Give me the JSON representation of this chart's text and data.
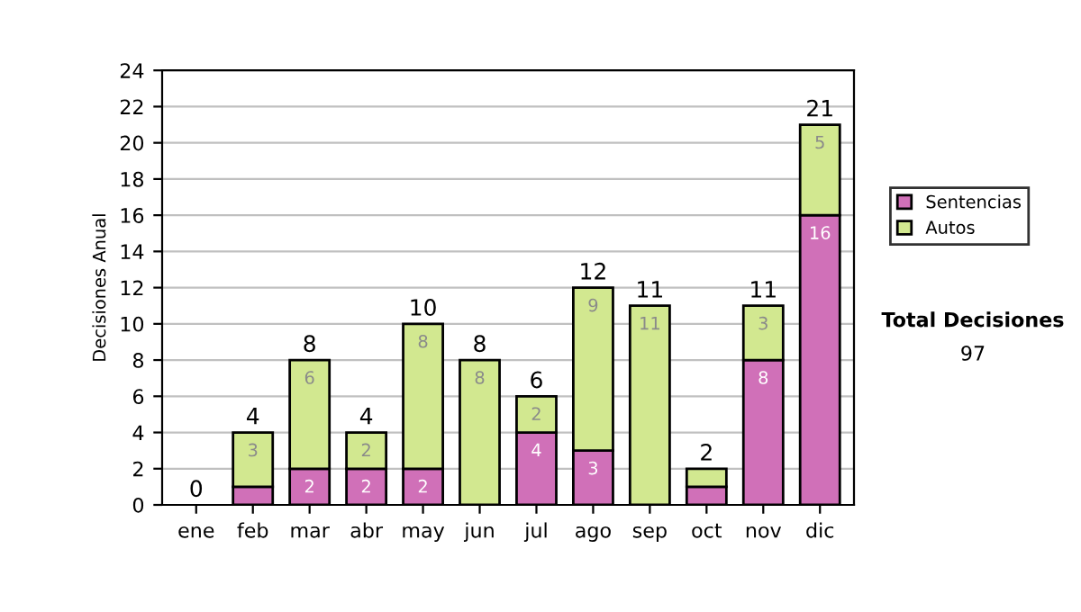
{
  "chart_data": {
    "type": "bar",
    "stacked": true,
    "ylabel": "Decisiones Anual",
    "categories": [
      "ene",
      "feb",
      "mar",
      "abr",
      "may",
      "jun",
      "jul",
      "ago",
      "sep",
      "oct",
      "nov",
      "dic"
    ],
    "series": [
      {
        "name": "Sentencias",
        "color": "#d070b8",
        "values": [
          0,
          1,
          2,
          2,
          2,
          0,
          4,
          3,
          0,
          1,
          8,
          16
        ],
        "value_labels": [
          null,
          null,
          "2",
          "2",
          "2",
          null,
          "4",
          "3",
          null,
          null,
          "8",
          "16"
        ]
      },
      {
        "name": "Autos",
        "color": "#d2e890",
        "values": [
          0,
          3,
          6,
          2,
          8,
          8,
          2,
          9,
          11,
          1,
          3,
          5
        ],
        "value_labels": [
          null,
          "3",
          "6",
          "2",
          "8",
          "8",
          "2",
          "9",
          "11",
          null,
          "3",
          "5"
        ]
      }
    ],
    "totals": [
      "0",
      "4",
      "8",
      "4",
      "10",
      "8",
      "6",
      "12",
      "11",
      "2",
      "11",
      "21"
    ],
    "ylim": [
      0,
      24
    ],
    "yticks": [
      0,
      2,
      4,
      6,
      8,
      10,
      12,
      14,
      16,
      18,
      20,
      22,
      24
    ],
    "grid": "y",
    "legend": "right",
    "annotations": [
      "Total Decisiones",
      "97"
    ]
  }
}
